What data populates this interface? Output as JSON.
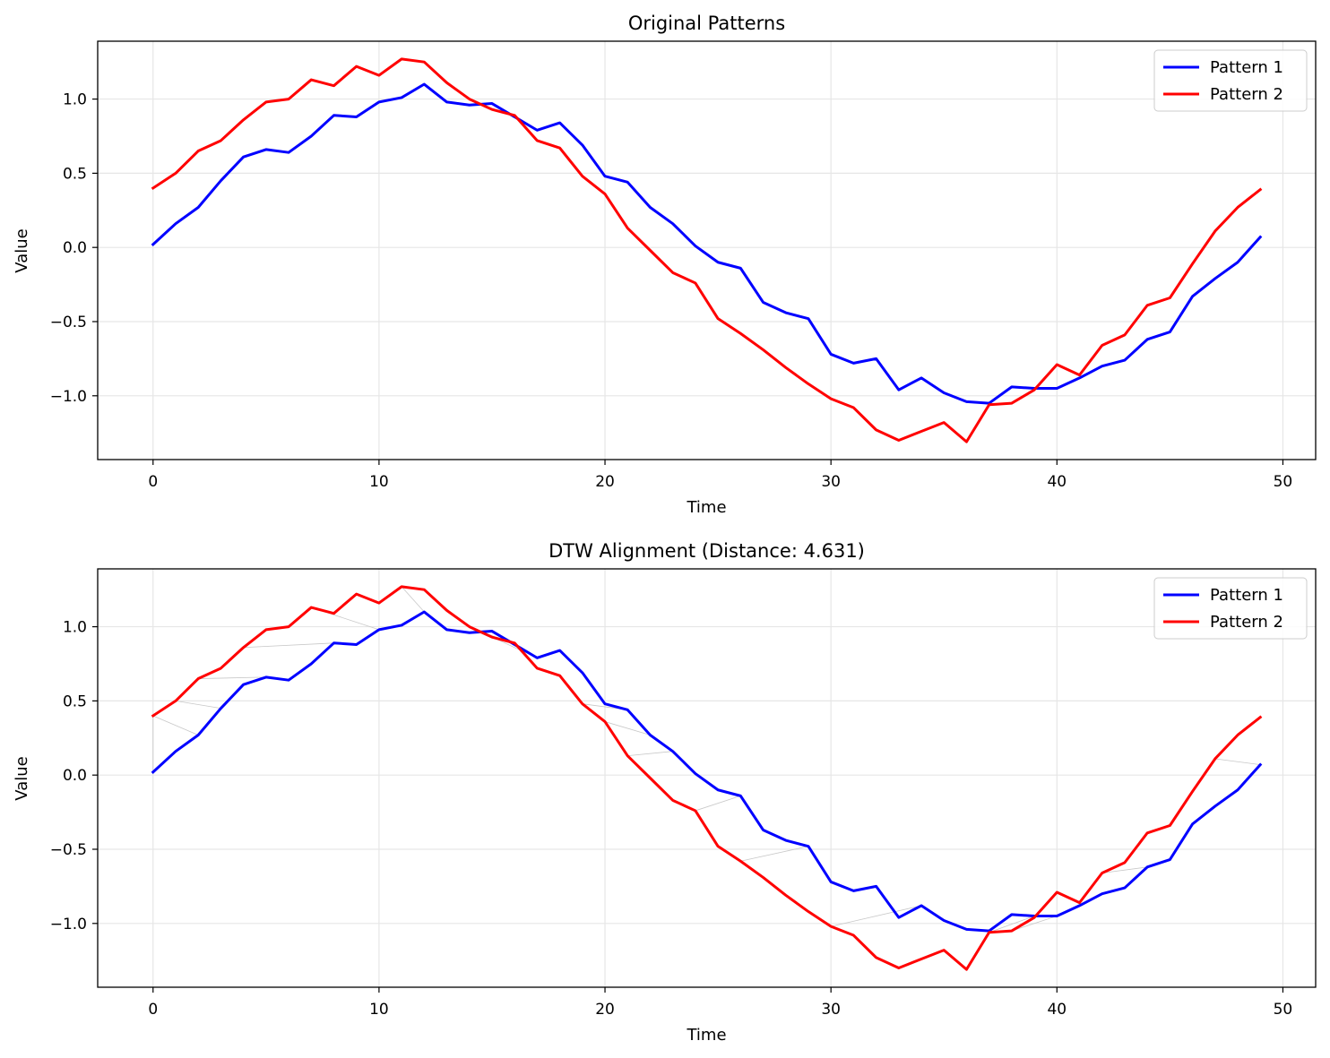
{
  "chart_data": [
    {
      "type": "line",
      "title": "Original Patterns",
      "xlabel": "Time",
      "ylabel": "Value",
      "xlim": [
        -2.45,
        51.45
      ],
      "ylim": [
        -1.43,
        1.39
      ],
      "xticks": [
        0,
        10,
        20,
        30,
        40,
        50
      ],
      "yticks": [
        -1.0,
        -0.5,
        0.0,
        0.5,
        1.0
      ],
      "xtick_labels": [
        "0",
        "10",
        "20",
        "30",
        "40",
        "50"
      ],
      "ytick_labels": [
        "−1.0",
        "−0.5",
        "0.0",
        "0.5",
        "1.0"
      ],
      "grid": true,
      "legend_position": "top-right",
      "legend": [
        "Pattern 1",
        "Pattern 2"
      ],
      "x": [
        0,
        1,
        2,
        3,
        4,
        5,
        6,
        7,
        8,
        9,
        10,
        11,
        12,
        13,
        14,
        15,
        16,
        17,
        18,
        19,
        20,
        21,
        22,
        23,
        24,
        25,
        26,
        27,
        28,
        29,
        30,
        31,
        32,
        33,
        34,
        35,
        36,
        37,
        38,
        39,
        40,
        41,
        42,
        43,
        44,
        45,
        46,
        47,
        48,
        49
      ],
      "series": [
        {
          "name": "Pattern 1",
          "color": "#0000ff",
          "values": [
            0.02,
            0.16,
            0.27,
            0.45,
            0.61,
            0.66,
            0.64,
            0.75,
            0.89,
            0.88,
            0.98,
            1.01,
            1.1,
            0.98,
            0.96,
            0.97,
            0.88,
            0.79,
            0.84,
            0.69,
            0.48,
            0.44,
            0.27,
            0.16,
            0.01,
            -0.1,
            -0.14,
            -0.37,
            -0.44,
            -0.48,
            -0.72,
            -0.78,
            -0.75,
            -0.96,
            -0.88,
            -0.98,
            -1.04,
            -1.05,
            -0.94,
            -0.95,
            -0.95,
            -0.88,
            -0.8,
            -0.76,
            -0.62,
            -0.57,
            -0.33,
            -0.21,
            -0.1,
            0.07
          ]
        },
        {
          "name": "Pattern 2",
          "color": "#ff0000",
          "values": [
            0.4,
            0.5,
            0.65,
            0.72,
            0.86,
            0.98,
            1.0,
            1.13,
            1.09,
            1.22,
            1.16,
            1.27,
            1.25,
            1.11,
            1.0,
            0.93,
            0.89,
            0.72,
            0.67,
            0.48,
            0.36,
            0.13,
            -0.02,
            -0.17,
            -0.24,
            -0.48,
            -0.58,
            -0.69,
            -0.81,
            -0.92,
            -1.02,
            -1.08,
            -1.23,
            -1.3,
            -1.24,
            -1.18,
            -1.31,
            -1.06,
            -1.05,
            -0.96,
            -0.79,
            -0.86,
            -0.66,
            -0.59,
            -0.39,
            -0.34,
            -0.11,
            0.11,
            0.27,
            0.39
          ]
        }
      ]
    },
    {
      "type": "line",
      "title": "DTW Alignment (Distance: 4.631)",
      "xlabel": "Time",
      "ylabel": "Value",
      "xlim": [
        -2.45,
        51.45
      ],
      "ylim": [
        -1.43,
        1.39
      ],
      "xticks": [
        0,
        10,
        20,
        30,
        40,
        50
      ],
      "yticks": [
        -1.0,
        -0.5,
        0.0,
        0.5,
        1.0
      ],
      "xtick_labels": [
        "0",
        "10",
        "20",
        "30",
        "40",
        "50"
      ],
      "ytick_labels": [
        "−1.0",
        "−0.5",
        "0.0",
        "0.5",
        "1.0"
      ],
      "grid": true,
      "legend_position": "top-right",
      "legend": [
        "Pattern 1",
        "Pattern 2"
      ],
      "x": [
        0,
        1,
        2,
        3,
        4,
        5,
        6,
        7,
        8,
        9,
        10,
        11,
        12,
        13,
        14,
        15,
        16,
        17,
        18,
        19,
        20,
        21,
        22,
        23,
        24,
        25,
        26,
        27,
        28,
        29,
        30,
        31,
        32,
        33,
        34,
        35,
        36,
        37,
        38,
        39,
        40,
        41,
        42,
        43,
        44,
        45,
        46,
        47,
        48,
        49
      ],
      "series": [
        {
          "name": "Pattern 1",
          "color": "#0000ff",
          "values": [
            0.02,
            0.16,
            0.27,
            0.45,
            0.61,
            0.66,
            0.64,
            0.75,
            0.89,
            0.88,
            0.98,
            1.01,
            1.1,
            0.98,
            0.96,
            0.97,
            0.88,
            0.79,
            0.84,
            0.69,
            0.48,
            0.44,
            0.27,
            0.16,
            0.01,
            -0.1,
            -0.14,
            -0.37,
            -0.44,
            -0.48,
            -0.72,
            -0.78,
            -0.75,
            -0.96,
            -0.88,
            -0.98,
            -1.04,
            -1.05,
            -0.94,
            -0.95,
            -0.95,
            -0.88,
            -0.8,
            -0.76,
            -0.62,
            -0.57,
            -0.33,
            -0.21,
            -0.1,
            0.07
          ]
        },
        {
          "name": "Pattern 2",
          "color": "#ff0000",
          "values": [
            0.4,
            0.5,
            0.65,
            0.72,
            0.86,
            0.98,
            1.0,
            1.13,
            1.09,
            1.22,
            1.16,
            1.27,
            1.25,
            1.11,
            1.0,
            0.93,
            0.89,
            0.72,
            0.67,
            0.48,
            0.36,
            0.13,
            -0.02,
            -0.17,
            -0.24,
            -0.48,
            -0.58,
            -0.69,
            -0.81,
            -0.92,
            -1.02,
            -1.08,
            -1.23,
            -1.3,
            -1.24,
            -1.18,
            -1.31,
            -1.06,
            -1.05,
            -0.96,
            -0.79,
            -0.86,
            -0.66,
            -0.59,
            -0.39,
            -0.34,
            -0.11,
            0.11,
            0.27,
            0.39
          ]
        }
      ],
      "alignment_links": [
        [
          0,
          0
        ],
        [
          2,
          0
        ],
        [
          3,
          1
        ],
        [
          5,
          2
        ],
        [
          8,
          4
        ],
        [
          10,
          7
        ],
        [
          12,
          11
        ],
        [
          16,
          14
        ],
        [
          17,
          15
        ],
        [
          21,
          19
        ],
        [
          22,
          20
        ],
        [
          23,
          21
        ],
        [
          26,
          24
        ],
        [
          29,
          26
        ],
        [
          34,
          30
        ],
        [
          37,
          36
        ],
        [
          39,
          37
        ],
        [
          40,
          38
        ],
        [
          44,
          42
        ],
        [
          49,
          47
        ]
      ],
      "alignment_color": "#c8c8c8"
    }
  ]
}
